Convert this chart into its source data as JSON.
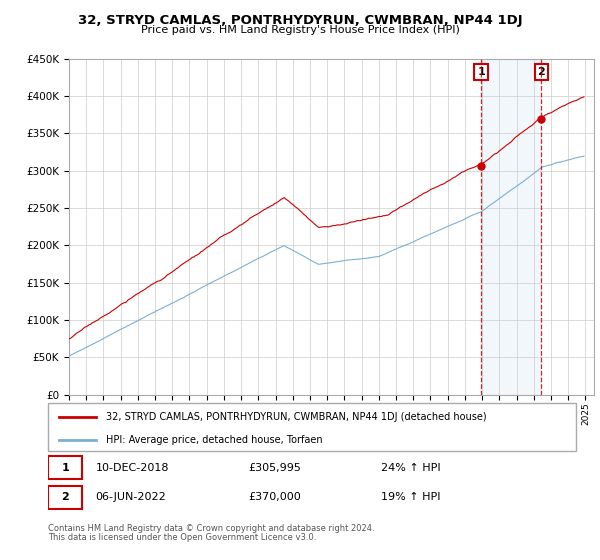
{
  "title": "32, STRYD CAMLAS, PONTRHYDYRUN, CWMBRAN, NP44 1DJ",
  "subtitle": "Price paid vs. HM Land Registry's House Price Index (HPI)",
  "ylim": [
    0,
    450000
  ],
  "xlim_start": 1995.0,
  "xlim_end": 2025.5,
  "sale1_date": 2018.94,
  "sale1_price": 305995,
  "sale1_label": "1",
  "sale2_date": 2022.44,
  "sale2_price": 370000,
  "sale2_label": "2",
  "legend_line1": "32, STRYD CAMLAS, PONTRHYDYRUN, CWMBRAN, NP44 1DJ (detached house)",
  "legend_line2": "HPI: Average price, detached house, Torfaen",
  "table_row1": [
    "1",
    "10-DEC-2018",
    "£305,995",
    "24% ↑ HPI"
  ],
  "table_row2": [
    "2",
    "06-JUN-2022",
    "£370,000",
    "19% ↑ HPI"
  ],
  "footer1": "Contains HM Land Registry data © Crown copyright and database right 2024.",
  "footer2": "This data is licensed under the Open Government Licence v3.0.",
  "red_color": "#cc0000",
  "blue_color": "#7ab0d4",
  "marker_box_color": "#cc0000",
  "shading_color": "#cce0f0",
  "background_color": "#ffffff",
  "grid_color": "#cccccc"
}
